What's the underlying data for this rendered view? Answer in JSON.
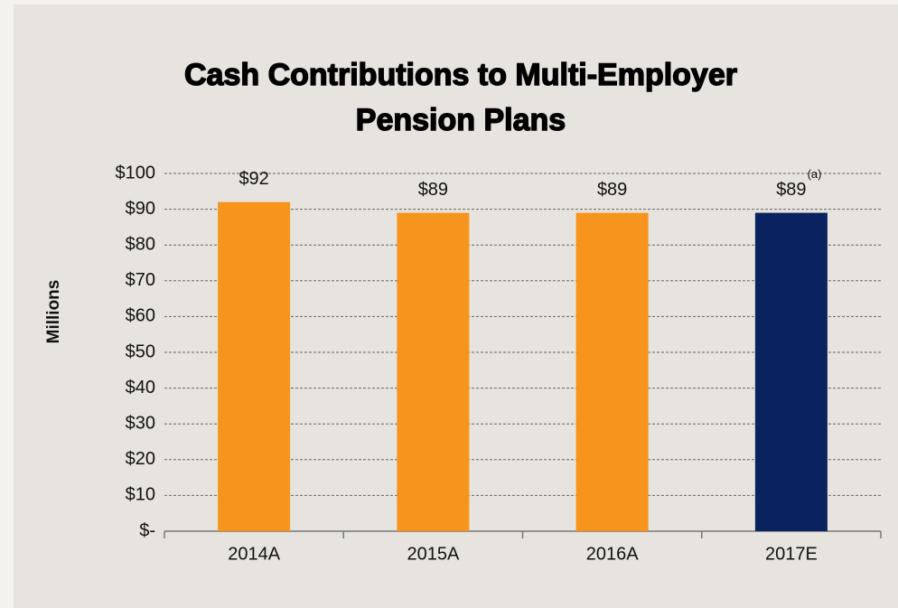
{
  "chart_data": {
    "type": "bar",
    "title": "Cash Contributions to Multi-Employer Pension Plans",
    "y_label": "Millions",
    "categories": [
      "2014A",
      "2015A",
      "2016A",
      "2017E"
    ],
    "values": [
      92,
      89,
      89,
      89
    ],
    "value_labels": [
      "$92",
      "$89",
      "$89",
      "$89"
    ],
    "colors": [
      "#f7941d",
      "#f7941d",
      "#f7941d",
      "#0b2260"
    ],
    "annotation": "(a)",
    "ylim": [
      0,
      100
    ],
    "yticks": [
      {
        "value": 0,
        "label": "$-"
      },
      {
        "value": 10,
        "label": "$10"
      },
      {
        "value": 20,
        "label": "$20"
      },
      {
        "value": 30,
        "label": "$30"
      },
      {
        "value": 40,
        "label": "$40"
      },
      {
        "value": 50,
        "label": "$50"
      },
      {
        "value": 60,
        "label": "$60"
      },
      {
        "value": 70,
        "label": "$70"
      },
      {
        "value": 80,
        "label": "$80"
      },
      {
        "value": 90,
        "label": "$90"
      },
      {
        "value": 100,
        "label": "$100"
      }
    ],
    "grid": true
  }
}
